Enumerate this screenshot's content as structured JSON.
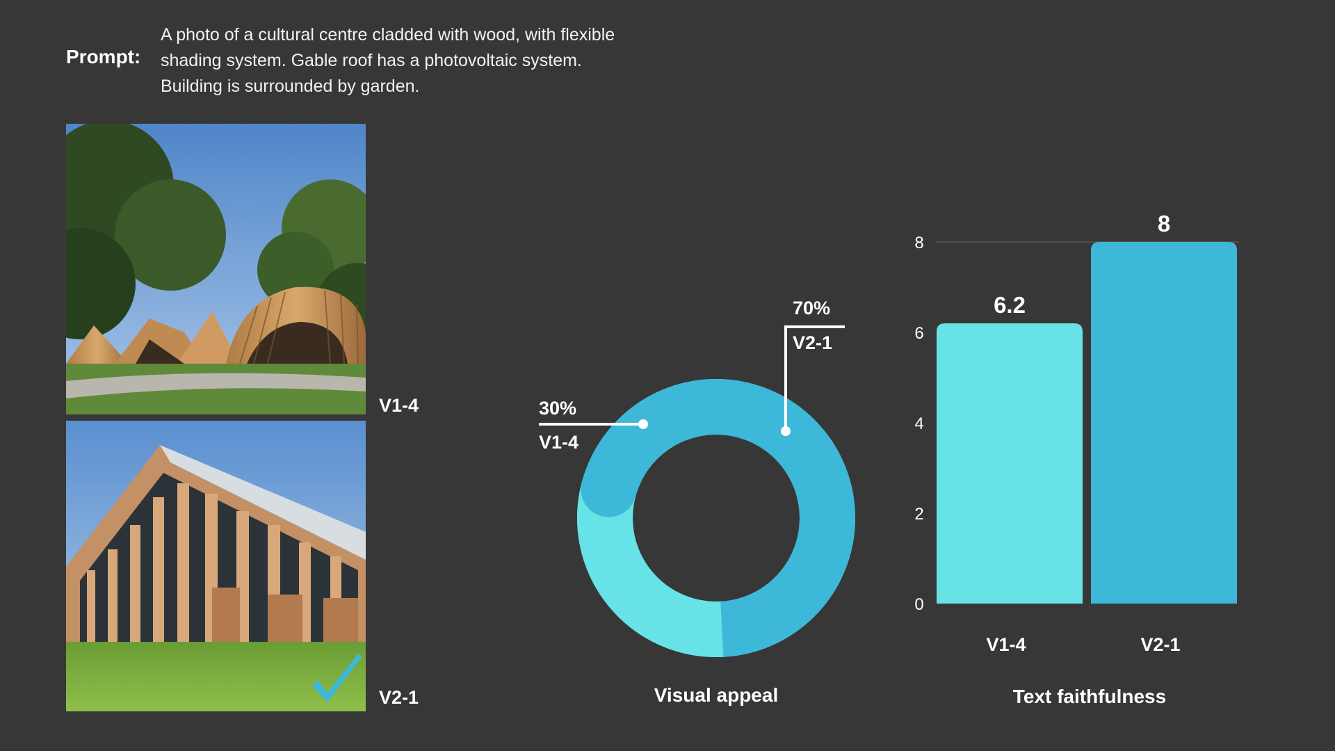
{
  "prompt": {
    "label": "Prompt:",
    "text": "A photo of a cultural centre cladded with wood, with flexible shading system. Gable roof has a photovoltaic system. Building is surrounded by garden."
  },
  "images": [
    {
      "label": "V1-4"
    },
    {
      "label": "V2-1",
      "badge_icon": "checkmark-icon"
    }
  ],
  "colors": {
    "background": "#373737",
    "v1_4": "#67e2e6",
    "v2_1": "#3db8d8",
    "text": "#ffffff"
  },
  "chart_data": [
    {
      "type": "pie",
      "style": "donut",
      "title": "Visual appeal",
      "slices": [
        {
          "label": "V1-4",
          "value": 30,
          "value_label": "30%"
        },
        {
          "label": "V2-1",
          "value": 70,
          "value_label": "70%"
        }
      ]
    },
    {
      "type": "bar",
      "title": "Text faithfulness",
      "categories": [
        "V1-4",
        "V2-1"
      ],
      "values": [
        6.2,
        8
      ],
      "value_labels": [
        "6.2",
        "8"
      ],
      "ylim": [
        0,
        8
      ],
      "yticks": [
        "0",
        "2",
        "4",
        "6",
        "8"
      ],
      "grid": true
    }
  ]
}
